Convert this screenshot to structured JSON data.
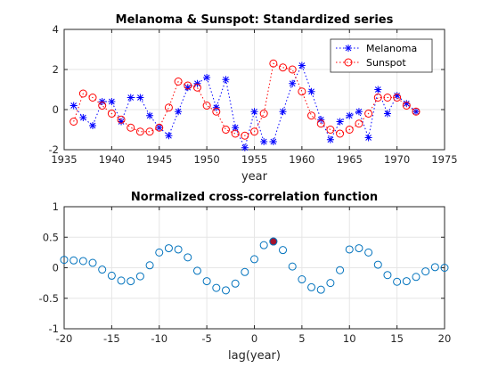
{
  "colors": {
    "axis": "#262626",
    "grid": "#e6e6e6",
    "melanoma": "#0000ff",
    "sunspot": "#ff0000",
    "xcorr": "#0072bd",
    "peak_fill": "#a2142f"
  },
  "chart_data": [
    {
      "type": "line",
      "title": "Melanoma & Sunspot: Standardized series",
      "xlabel": "year",
      "ylabel": "",
      "xlim": [
        1935,
        1975
      ],
      "ylim": [
        -2,
        4
      ],
      "xticks": [
        1935,
        1940,
        1945,
        1950,
        1955,
        1960,
        1965,
        1970,
        1975
      ],
      "yticks": [
        -2,
        0,
        2,
        4
      ],
      "grid": true,
      "legend": "top-right",
      "x": [
        1936,
        1937,
        1938,
        1939,
        1940,
        1941,
        1942,
        1943,
        1944,
        1945,
        1946,
        1947,
        1948,
        1949,
        1950,
        1951,
        1952,
        1953,
        1954,
        1955,
        1956,
        1957,
        1958,
        1959,
        1960,
        1961,
        1962,
        1963,
        1964,
        1965,
        1966,
        1967,
        1968,
        1969,
        1970,
        1971,
        1972
      ],
      "series": [
        {
          "name": "Melanoma",
          "marker": "asterisk",
          "line": "dotted",
          "color": "#0000ff",
          "values": [
            0.2,
            -0.4,
            -0.8,
            0.4,
            0.4,
            -0.6,
            0.6,
            0.6,
            -0.3,
            -0.9,
            -1.3,
            -0.1,
            1.1,
            1.3,
            1.6,
            0.1,
            1.5,
            -0.9,
            -1.9,
            -0.1,
            -1.6,
            -1.6,
            -0.1,
            1.3,
            2.2,
            0.9,
            -0.5,
            -1.5,
            -0.6,
            -0.3,
            -0.1,
            -1.4,
            1.0,
            -0.2,
            0.7,
            0.3,
            -0.1
          ]
        },
        {
          "name": "Sunspot",
          "marker": "circle",
          "line": "dotted",
          "color": "#ff0000",
          "values": [
            -0.6,
            0.8,
            0.6,
            0.2,
            -0.2,
            -0.5,
            -0.9,
            -1.1,
            -1.1,
            -0.9,
            0.1,
            1.4,
            1.2,
            1.1,
            0.2,
            -0.1,
            -1.0,
            -1.2,
            -1.3,
            -1.1,
            -0.2,
            2.3,
            2.1,
            2.0,
            0.9,
            -0.3,
            -0.7,
            -1.0,
            -1.2,
            -1.0,
            -0.7,
            -0.2,
            0.6,
            0.6,
            0.6,
            0.2,
            -0.1
          ]
        }
      ]
    },
    {
      "type": "scatter",
      "title": "Normalized cross-correlation function",
      "xlabel": "lag(year)",
      "ylabel": "",
      "xlim": [
        -20,
        20
      ],
      "ylim": [
        -1,
        1
      ],
      "xticks": [
        -20,
        -15,
        -10,
        -5,
        0,
        5,
        10,
        15,
        20
      ],
      "yticks": [
        -1,
        -0.5,
        0,
        0.5,
        1
      ],
      "ytick_labels": [
        "-1",
        "-0.5",
        "0",
        "0.5",
        "1"
      ],
      "grid": true,
      "marker": "circle",
      "color": "#0072bd",
      "highlight": {
        "x": 2,
        "y": 0.43,
        "color": "#a2142f"
      },
      "x": [
        -20,
        -19,
        -18,
        -17,
        -16,
        -15,
        -14,
        -13,
        -12,
        -11,
        -10,
        -9,
        -8,
        -7,
        -6,
        -5,
        -4,
        -3,
        -2,
        -1,
        0,
        1,
        2,
        3,
        4,
        5,
        6,
        7,
        8,
        9,
        10,
        11,
        12,
        13,
        14,
        15,
        16,
        17,
        18,
        19,
        20
      ],
      "values": [
        0.13,
        0.12,
        0.11,
        0.08,
        -0.03,
        -0.13,
        -0.21,
        -0.22,
        -0.14,
        0.04,
        0.25,
        0.32,
        0.3,
        0.17,
        -0.05,
        -0.22,
        -0.33,
        -0.37,
        -0.26,
        -0.07,
        0.14,
        0.37,
        0.43,
        0.29,
        0.02,
        -0.19,
        -0.32,
        -0.36,
        -0.25,
        -0.04,
        0.3,
        0.32,
        0.25,
        0.05,
        -0.12,
        -0.23,
        -0.22,
        -0.15,
        -0.06,
        0.01,
        0.0
      ]
    }
  ]
}
